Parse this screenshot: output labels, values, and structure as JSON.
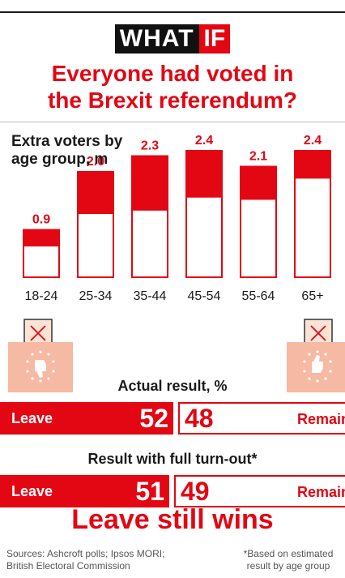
{
  "brand": {
    "word1": "WHAT",
    "word2": "IF"
  },
  "headline": {
    "line1": "Everyone had voted in",
    "line2": "the Brexit referendum?"
  },
  "chart_data": {
    "type": "bar",
    "title_line1": "Extra voters by",
    "title_line2": "age group, m",
    "categories": [
      "18-24",
      "25-34",
      "35-44",
      "45-54",
      "55-64",
      "65+"
    ],
    "values": [
      0.9,
      2.0,
      2.3,
      2.4,
      2.1,
      2.4
    ],
    "value_labels": [
      "0.9",
      "2.0",
      "2.3",
      "2.4",
      "2.1",
      "2.4"
    ],
    "totals": [
      0.9,
      2.0,
      2.3,
      2.4,
      2.1,
      2.4
    ],
    "leave_share_estimate": [
      0.35,
      0.4,
      0.45,
      0.37,
      0.3,
      0.22
    ],
    "colors": {
      "leave": "#e30613",
      "remain": "#ffffff"
    }
  },
  "actual": {
    "label": "Actual result, %",
    "leave_label": "Leave",
    "leave": "52",
    "remain": "48",
    "remain_label": "Remain",
    "leave_share": 52
  },
  "full": {
    "label": "Result with full turn-out*",
    "leave_label": "Leave",
    "leave": "51",
    "remain": "49",
    "remain_label": "Remain",
    "leave_share": 51
  },
  "conclusion": "Leave still wins",
  "sources": {
    "line1": "Sources: Ashcroft polls; Ipsos MORI;",
    "line2": "British Electoral Commission"
  },
  "footnote": {
    "line1": "*Based on estimated",
    "line2": "result by age group"
  },
  "icons": {
    "left": "thumbs-down-ballot-icon",
    "right": "thumbs-up-ballot-icon"
  }
}
